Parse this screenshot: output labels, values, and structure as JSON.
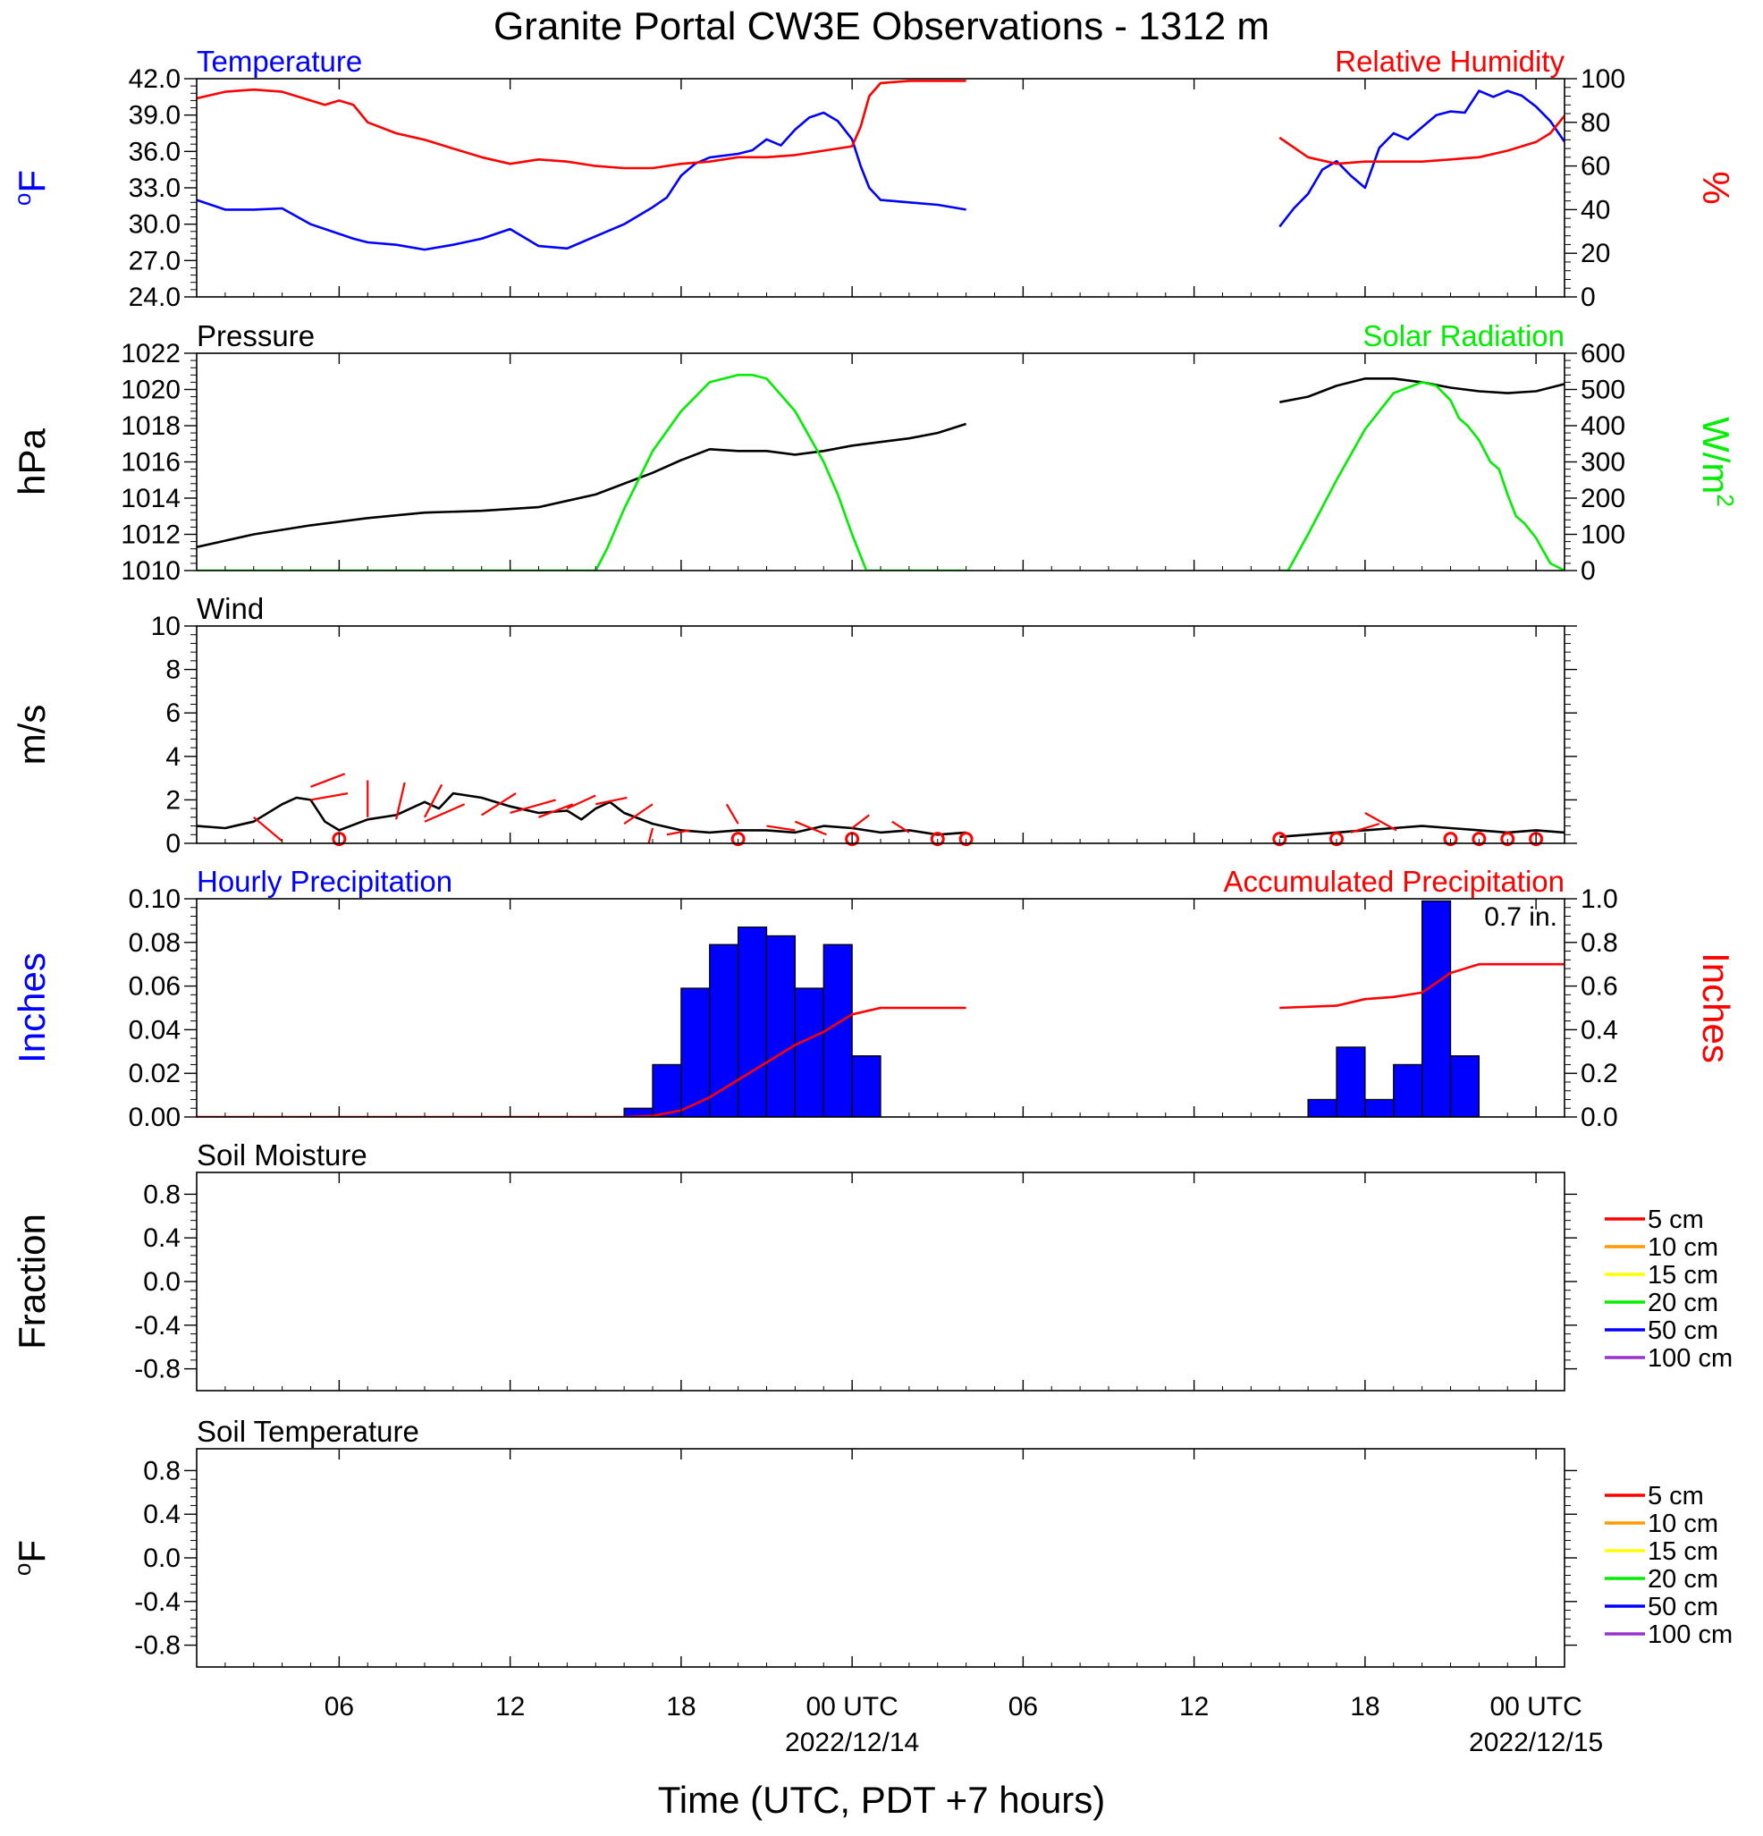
{
  "title": "Granite Portal CW3E Observations - 1312 m",
  "colors": {
    "blue": "#0000ff",
    "red": "#ff0000",
    "green": "#00ee00",
    "black": "#000000",
    "orange": "#ff9900",
    "yellow": "#ffff00",
    "purple": "#9933cc"
  },
  "time_axis": {
    "label": "Time (UTC, PDT +7 hours)",
    "range_hours": [
      0,
      48
    ],
    "ticks": [
      {
        "hour": 5,
        "label": "06",
        "date": ""
      },
      {
        "hour": 11,
        "label": "12",
        "date": ""
      },
      {
        "hour": 17,
        "label": "18",
        "date": ""
      },
      {
        "hour": 23,
        "label": "00 UTC",
        "date": "2022/12/14"
      },
      {
        "hour": 29,
        "label": "06",
        "date": ""
      },
      {
        "hour": 35,
        "label": "12",
        "date": ""
      },
      {
        "hour": 41,
        "label": "18",
        "date": ""
      },
      {
        "hour": 47,
        "label": "00 UTC",
        "date": "2022/12/15"
      }
    ]
  },
  "chart_data": [
    {
      "type": "line",
      "panel": "temperature_humidity",
      "left_title": "Temperature",
      "right_title": "Relative Humidity",
      "left_ylabel": "oF",
      "right_ylabel": "%",
      "left_ylim": [
        24,
        42
      ],
      "right_ylim": [
        0,
        100
      ],
      "left_ticks": [
        "42.0",
        "39.0",
        "36.0",
        "33.0",
        "30.0",
        "27.0",
        "24.0"
      ],
      "right_ticks": [
        "100",
        "80",
        "60",
        "40",
        "20",
        "0"
      ],
      "series": [
        {
          "name": "Temperature",
          "axis": "left",
          "color": "#0000ff",
          "segments": [
            {
              "x": [
                0,
                1,
                2,
                3,
                4,
                5,
                5.5,
                6,
                7,
                8,
                9,
                10,
                11,
                12,
                13,
                14,
                15,
                16,
                16.5,
                17,
                17.5,
                18,
                19,
                19.5,
                20,
                20.5,
                21,
                21.5,
                22,
                22.5,
                23,
                23.3,
                23.6,
                24,
                25,
                26,
                27
              ],
              "y": [
                32.0,
                31.2,
                31.2,
                31.3,
                30.0,
                29.2,
                28.8,
                28.5,
                28.3,
                27.9,
                28.3,
                28.8,
                29.6,
                28.2,
                28.0,
                29.0,
                30.0,
                31.4,
                32.2,
                34.0,
                35.0,
                35.5,
                35.8,
                36.1,
                37.0,
                36.5,
                37.8,
                38.8,
                39.2,
                38.5,
                37.0,
                34.8,
                33.0,
                32.0,
                31.8,
                31.6,
                31.2
              ]
            },
            {
              "x": [
                38,
                38.5,
                39,
                39.5,
                40,
                40.5,
                41,
                41.5,
                42,
                42.5,
                43,
                43.5,
                44,
                44.5,
                45,
                45.5,
                46,
                46.5,
                47,
                47.5,
                48
              ],
              "y": [
                29.8,
                31.3,
                32.5,
                34.5,
                35.2,
                34.0,
                33.0,
                36.3,
                37.5,
                37.0,
                38.0,
                39.0,
                39.3,
                39.2,
                41.0,
                40.5,
                41.0,
                40.6,
                39.7,
                38.5,
                36.8
              ]
            }
          ]
        },
        {
          "name": "Relative Humidity",
          "axis": "right",
          "color": "#ff0000",
          "segments": [
            {
              "x": [
                0,
                1,
                2,
                3,
                4,
                4.5,
                5,
                5.5,
                6,
                7,
                8,
                9,
                10,
                11,
                12,
                13,
                14,
                15,
                16,
                17,
                18,
                19,
                20,
                21,
                22,
                23,
                23.3,
                23.6,
                24,
                25,
                26,
                27
              ],
              "y": [
                91,
                94,
                95,
                94,
                90,
                88,
                90,
                88,
                80,
                75,
                72,
                68,
                64,
                61,
                63,
                62,
                60,
                59,
                59,
                61,
                62,
                64,
                64,
                65,
                67,
                69,
                78,
                92,
                98,
                99,
                99,
                99
              ]
            },
            {
              "x": [
                38,
                39,
                40,
                41,
                42,
                43,
                44,
                45,
                46,
                47,
                47.5,
                48
              ],
              "y": [
                73,
                64,
                61,
                62,
                62,
                62,
                63,
                64,
                67,
                71,
                75,
                83
              ]
            }
          ]
        }
      ]
    },
    {
      "type": "line",
      "panel": "pressure_solar",
      "left_title": "Pressure",
      "right_title": "Solar Radiation",
      "left_ylabel": "hPa",
      "right_ylabel": "W/m2",
      "left_ylim": [
        1010,
        1022
      ],
      "right_ylim": [
        0,
        600
      ],
      "left_ticks": [
        "1022",
        "1020",
        "1018",
        "1016",
        "1014",
        "1012",
        "1010"
      ],
      "right_ticks": [
        "600",
        "500",
        "400",
        "300",
        "200",
        "100",
        "0"
      ],
      "series": [
        {
          "name": "Pressure",
          "axis": "left",
          "color": "#000000",
          "segments": [
            {
              "x": [
                0,
                2,
                4,
                6,
                8,
                10,
                12,
                14,
                16,
                17,
                18,
                19,
                20,
                21,
                22,
                23,
                24,
                25,
                26,
                27
              ],
              "y": [
                1011.3,
                1012.0,
                1012.5,
                1012.9,
                1013.2,
                1013.3,
                1013.5,
                1014.2,
                1015.4,
                1016.1,
                1016.7,
                1016.6,
                1016.6,
                1016.4,
                1016.6,
                1016.9,
                1017.1,
                1017.3,
                1017.6,
                1018.1
              ]
            },
            {
              "x": [
                38,
                39,
                40,
                41,
                42,
                43,
                44,
                45,
                46,
                47,
                48
              ],
              "y": [
                1019.3,
                1019.6,
                1020.2,
                1020.6,
                1020.6,
                1020.4,
                1020.1,
                1019.9,
                1019.8,
                1019.9,
                1020.3
              ]
            }
          ]
        },
        {
          "name": "Solar Radiation",
          "axis": "right",
          "color": "#00ee00",
          "segments": [
            {
              "x": [
                0,
                14,
                14.4,
                15,
                16,
                17,
                18,
                19,
                19.5,
                20,
                21,
                22,
                22.5,
                23,
                23.3,
                23.5,
                27
              ],
              "y": [
                0,
                0,
                60,
                170,
                330,
                440,
                520,
                540,
                540,
                530,
                440,
                300,
                210,
                100,
                40,
                0,
                0
              ]
            },
            {
              "x": [
                38,
                38.3,
                39,
                40,
                41,
                42,
                43,
                43.5,
                44,
                44.3,
                44.6,
                45,
                45.4,
                45.7,
                46,
                46.3,
                46.6,
                47,
                47.5,
                48
              ],
              "y": [
                0,
                0,
                100,
                250,
                390,
                490,
                520,
                510,
                470,
                420,
                400,
                360,
                300,
                280,
                210,
                150,
                130,
                90,
                20,
                0
              ]
            }
          ]
        }
      ]
    },
    {
      "type": "line",
      "panel": "wind",
      "left_title": "Wind",
      "left_ylabel": "m/s",
      "left_ylim": [
        0,
        10
      ],
      "left_ticks": [
        "10",
        "8",
        "6",
        "4",
        "2",
        "0"
      ],
      "series": [
        {
          "name": "Wind",
          "axis": "left",
          "color": "#000000",
          "segments": [
            {
              "x": [
                0,
                1,
                2,
                3,
                3.5,
                4,
                4.5,
                5,
                6,
                7,
                8,
                8.5,
                9,
                10,
                11,
                12,
                13,
                13.5,
                14,
                14.5,
                15,
                16,
                17,
                18,
                19,
                20,
                21,
                22,
                23,
                24,
                25,
                26,
                27
              ],
              "y": [
                0.8,
                0.7,
                1.0,
                1.8,
                2.1,
                2.0,
                1.0,
                0.6,
                1.1,
                1.3,
                1.9,
                1.6,
                2.3,
                2.1,
                1.7,
                1.4,
                1.5,
                1.1,
                1.6,
                1.9,
                1.4,
                0.9,
                0.6,
                0.5,
                0.6,
                0.6,
                0.5,
                0.8,
                0.7,
                0.5,
                0.6,
                0.4,
                0.5
              ]
            },
            {
              "x": [
                38,
                39,
                40,
                41,
                42,
                43,
                44,
                45,
                46,
                47,
                48
              ],
              "y": [
                0.3,
                0.4,
                0.5,
                0.6,
                0.7,
                0.8,
                0.7,
                0.6,
                0.5,
                0.6,
                0.5
              ]
            }
          ]
        }
      ],
      "barbs_color": "#ff0000",
      "barbs": [
        {
          "x": 2,
          "y": 1.2,
          "dx": 1.0,
          "dy": -1.1
        },
        {
          "x": 4,
          "y": 2.0,
          "dx": 1.3,
          "dy": 0.3
        },
        {
          "x": 4,
          "y": 2.6,
          "dx": 1.2,
          "dy": 0.6
        },
        {
          "x": 6,
          "y": 1.2,
          "dx": 0.0,
          "dy": 1.7
        },
        {
          "x": 7,
          "y": 1.1,
          "dx": 0.3,
          "dy": 1.7
        },
        {
          "x": 8,
          "y": 1.2,
          "dx": 0.6,
          "dy": 1.5
        },
        {
          "x": 8,
          "y": 1.0,
          "dx": 1.4,
          "dy": 0.8
        },
        {
          "x": 10,
          "y": 1.3,
          "dx": 1.2,
          "dy": 1.0
        },
        {
          "x": 11,
          "y": 1.4,
          "dx": 1.6,
          "dy": 0.6
        },
        {
          "x": 12,
          "y": 1.2,
          "dx": 1.2,
          "dy": 0.6
        },
        {
          "x": 13,
          "y": 1.6,
          "dx": 1.0,
          "dy": 0.6
        },
        {
          "x": 14,
          "y": 1.8,
          "dx": 1.1,
          "dy": 0.3
        },
        {
          "x": 15,
          "y": 0.9,
          "dx": 1.0,
          "dy": 0.9
        },
        {
          "x": 16,
          "y": 0.7,
          "dx": -0.3,
          "dy": -1.5
        },
        {
          "x": 16.5,
          "y": 0.4,
          "dx": 0.8,
          "dy": 0.2
        },
        {
          "x": 19,
          "y": 0.9,
          "dx": -0.4,
          "dy": 0.9
        },
        {
          "x": 20,
          "y": 0.8,
          "dx": 1.0,
          "dy": -0.2
        },
        {
          "x": 21,
          "y": 1.0,
          "dx": 1.1,
          "dy": -0.6
        },
        {
          "x": 23,
          "y": 0.7,
          "dx": 0.6,
          "dy": 0.6
        },
        {
          "x": 25,
          "y": 0.5,
          "dx": -0.6,
          "dy": 0.5
        },
        {
          "x": 40.5,
          "y": 0.5,
          "dx": 1.0,
          "dy": 0.4
        },
        {
          "x": 41,
          "y": 1.4,
          "dx": 1.1,
          "dy": -0.8
        }
      ],
      "calm_markers": [
        5,
        19,
        23,
        26,
        27,
        38,
        40,
        44,
        45,
        46,
        47
      ]
    },
    {
      "type": "bar",
      "panel": "precipitation",
      "left_title": "Hourly Precipitation",
      "right_title": "Accumulated Precipitation",
      "annotation": "0.7 in.",
      "left_ylabel": "Inches",
      "right_ylabel": "Inches",
      "left_ylim": [
        0,
        0.1
      ],
      "right_ylim": [
        0,
        1.0
      ],
      "left_ticks": [
        "0.10",
        "0.08",
        "0.06",
        "0.04",
        "0.02",
        "0.00"
      ],
      "right_ticks": [
        "1.0",
        "0.8",
        "0.6",
        "0.4",
        "0.2",
        "0.0"
      ],
      "bar_color": "#0000ff",
      "bars": {
        "x_start": [
          15,
          16,
          17,
          18,
          19,
          20,
          21,
          22,
          23,
          39,
          40,
          41,
          42,
          43,
          44
        ],
        "values": [
          0.004,
          0.024,
          0.059,
          0.079,
          0.087,
          0.083,
          0.059,
          0.079,
          0.028,
          0.008,
          0.032,
          0.008,
          0.024,
          0.099,
          0.028
        ]
      },
      "series": [
        {
          "name": "Accumulated Precipitation",
          "axis": "right",
          "color": "#ff0000",
          "segments": [
            {
              "x": [
                0,
                15,
                16,
                17,
                18,
                19,
                20,
                21,
                22,
                23,
                24,
                27
              ],
              "y": [
                0,
                0,
                0.005,
                0.03,
                0.09,
                0.17,
                0.25,
                0.33,
                0.39,
                0.47,
                0.5,
                0.5
              ]
            },
            {
              "x": [
                38,
                40,
                41,
                42,
                43,
                44,
                45,
                48
              ],
              "y": [
                0.5,
                0.51,
                0.54,
                0.55,
                0.57,
                0.66,
                0.7,
                0.7
              ]
            }
          ]
        }
      ]
    },
    {
      "type": "line",
      "panel": "soil_moisture",
      "left_title": "Soil Moisture",
      "left_ylabel": "Fraction",
      "left_ylim": [
        -1,
        1
      ],
      "left_ticks": [
        "0.8",
        "0.4",
        "0.0",
        "-0.4",
        "-0.8"
      ],
      "legend": [
        {
          "label": "5 cm",
          "color": "#ff0000"
        },
        {
          "label": "10 cm",
          "color": "#ff9900"
        },
        {
          "label": "15 cm",
          "color": "#ffff00"
        },
        {
          "label": "20 cm",
          "color": "#00ee00"
        },
        {
          "label": "50 cm",
          "color": "#0000ff"
        },
        {
          "label": "100 cm",
          "color": "#9933cc"
        }
      ],
      "series": []
    },
    {
      "type": "line",
      "panel": "soil_temperature",
      "left_title": "Soil Temperature",
      "left_ylabel": "oF",
      "left_ylim": [
        -1,
        1
      ],
      "left_ticks": [
        "0.8",
        "0.4",
        "0.0",
        "-0.4",
        "-0.8"
      ],
      "legend": [
        {
          "label": "5 cm",
          "color": "#ff0000"
        },
        {
          "label": "10 cm",
          "color": "#ff9900"
        },
        {
          "label": "15 cm",
          "color": "#ffff00"
        },
        {
          "label": "20 cm",
          "color": "#00ee00"
        },
        {
          "label": "50 cm",
          "color": "#0000ff"
        },
        {
          "label": "100 cm",
          "color": "#9933cc"
        }
      ],
      "series": []
    }
  ]
}
